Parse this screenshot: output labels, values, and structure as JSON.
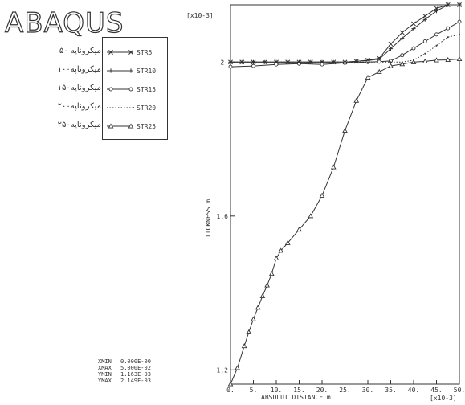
{
  "logo": "ABAQUS",
  "chart_data": {
    "type": "line",
    "xlabel": "ABSOLUT DISTANCE m",
    "ylabel": "TICKNESS m",
    "x_multiplier": "[x10-3]",
    "y_multiplier": "[x10-3]",
    "xlim": [
      0,
      50
    ],
    "ylim": [
      1.163,
      2.149
    ],
    "x_ticks": [
      "0.",
      "5.",
      "10.",
      "15.",
      "20.",
      "25.",
      "30.",
      "35.",
      "40.",
      "45.",
      "50."
    ],
    "y_ticks": [
      {
        "value": 1.2,
        "label": "1.2"
      },
      {
        "value": 1.6,
        "label": "1.6"
      },
      {
        "value": 2.0,
        "label": "2."
      }
    ],
    "series": [
      {
        "name": "STR5",
        "marker": "x",
        "points": [
          [
            0,
            2.0
          ],
          [
            2.5,
            2.0
          ],
          [
            5,
            2.0
          ],
          [
            7.5,
            2.0
          ],
          [
            10,
            2.0
          ],
          [
            12.5,
            2.0
          ],
          [
            15,
            2.0
          ],
          [
            17.5,
            2.0
          ],
          [
            20,
            2.0
          ],
          [
            22.5,
            2.0
          ],
          [
            25,
            2.0
          ],
          [
            27.5,
            2.002
          ],
          [
            30,
            2.005
          ],
          [
            32.5,
            2.01
          ],
          [
            35,
            2.047
          ],
          [
            37.5,
            2.077
          ],
          [
            40,
            2.1
          ],
          [
            42.5,
            2.12
          ],
          [
            45,
            2.14
          ],
          [
            47.5,
            2.149
          ],
          [
            50,
            2.149
          ]
        ]
      },
      {
        "name": "STR10",
        "marker": "plus",
        "points": [
          [
            0,
            2.0
          ],
          [
            2.5,
            2.0
          ],
          [
            5,
            2.0
          ],
          [
            7.5,
            2.0
          ],
          [
            10,
            2.0
          ],
          [
            12.5,
            2.0
          ],
          [
            15,
            2.0
          ],
          [
            17.5,
            2.0
          ],
          [
            20,
            2.0
          ],
          [
            22.5,
            2.0
          ],
          [
            25,
            2.0
          ],
          [
            27.5,
            2.002
          ],
          [
            30,
            2.004
          ],
          [
            32.5,
            2.008
          ],
          [
            35,
            2.035
          ],
          [
            37.5,
            2.062
          ],
          [
            40,
            2.087
          ],
          [
            42.5,
            2.111
          ],
          [
            45,
            2.133
          ],
          [
            47.5,
            2.149
          ],
          [
            50,
            2.149
          ]
        ]
      },
      {
        "name": "STR15",
        "marker": "circle",
        "points": [
          [
            0,
            1.988
          ],
          [
            5,
            1.99
          ],
          [
            10,
            1.994
          ],
          [
            15,
            1.996
          ],
          [
            20,
            1.994
          ],
          [
            25,
            1.998
          ],
          [
            30,
            2.0
          ],
          [
            32.5,
            2.001
          ],
          [
            35,
            2.003
          ],
          [
            37.5,
            2.018
          ],
          [
            40,
            2.036
          ],
          [
            42.5,
            2.054
          ],
          [
            45,
            2.072
          ],
          [
            47.5,
            2.088
          ],
          [
            50,
            2.105
          ]
        ]
      },
      {
        "name": "STR20",
        "marker": "dot",
        "points": [
          [
            0,
            2.0
          ],
          [
            5,
            2.0
          ],
          [
            10,
            2.0
          ],
          [
            15,
            2.0
          ],
          [
            20,
            2.0
          ],
          [
            25,
            2.0
          ],
          [
            30,
            2.0
          ],
          [
            35,
            2.0
          ],
          [
            37.5,
            2.0
          ],
          [
            40,
            2.005
          ],
          [
            42.5,
            2.022
          ],
          [
            45,
            2.043
          ],
          [
            47.5,
            2.065
          ],
          [
            50,
            2.072
          ]
        ]
      },
      {
        "name": "STR25",
        "marker": "triangle",
        "points": [
          [
            0,
            1.163
          ],
          [
            1.5,
            1.205
          ],
          [
            3,
            1.262
          ],
          [
            4,
            1.298
          ],
          [
            5,
            1.332
          ],
          [
            6,
            1.362
          ],
          [
            7,
            1.392
          ],
          [
            8,
            1.42
          ],
          [
            9,
            1.45
          ],
          [
            10,
            1.49
          ],
          [
            11,
            1.51
          ],
          [
            12.5,
            1.53
          ],
          [
            15,
            1.565
          ],
          [
            17.5,
            1.6
          ],
          [
            20,
            1.653
          ],
          [
            22.5,
            1.727
          ],
          [
            25,
            1.822
          ],
          [
            27.5,
            1.9
          ],
          [
            30,
            1.96
          ],
          [
            32.5,
            1.975
          ],
          [
            35,
            1.99
          ],
          [
            37.5,
            1.995
          ],
          [
            40,
            2.0
          ],
          [
            42.5,
            2.002
          ],
          [
            45,
            2.005
          ],
          [
            47.5,
            2.006
          ],
          [
            50,
            2.008
          ]
        ]
      }
    ],
    "left_labels": [
      "۵۰ میکروناپه",
      "۱۰۰میکروناپه",
      "۱۵۰میکروناپه",
      "۲۰۰میکروناپه",
      "۲۵۰میکروناپه"
    ],
    "stats": [
      {
        "key": "XMIN",
        "value": "0.000E-00"
      },
      {
        "key": "XMAX",
        "value": "5.000E-02"
      },
      {
        "key": "YMIN",
        "value": "1.163E-03"
      },
      {
        "key": "YMAX",
        "value": "2.149E-03"
      }
    ]
  }
}
